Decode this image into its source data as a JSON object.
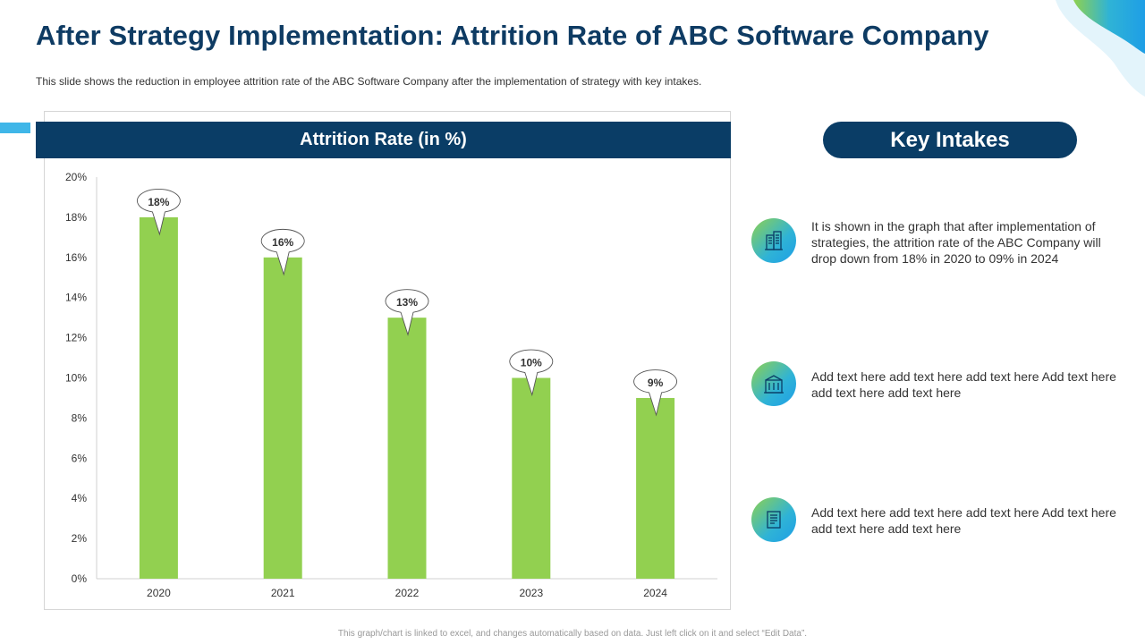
{
  "title": "After Strategy Implementation: Attrition Rate of ABC Software Company",
  "subtitle": "This slide shows the reduction in employee attrition rate of the ABC Software Company after the implementation of strategy with key intakes.",
  "chart_header": "Attrition Rate (in %)",
  "key_intakes": {
    "heading": "Key Intakes",
    "items": [
      {
        "icon": "office-building-icon",
        "text": "It is shown in the graph that after implementation of strategies, the attrition rate of the ABC Company will drop down from 18% in 2020 to 09% in 2024"
      },
      {
        "icon": "building-icon",
        "text": "Add text here add text here add text here Add text here add text here add text here"
      },
      {
        "icon": "document-icon",
        "text": "Add text here add text here add text here Add text here add text here add text here"
      }
    ]
  },
  "footer": "This graph/chart is linked to excel, and changes automatically based on data. Just left click on it and select “Edit Data”.",
  "colors": {
    "bar": "#92d050",
    "header": "#0a3d66",
    "accent": "#3fb6e8"
  },
  "chart_data": {
    "type": "bar",
    "title": "Attrition Rate (in %)",
    "categories": [
      "2020",
      "2021",
      "2022",
      "2023",
      "2024"
    ],
    "values": [
      18,
      16,
      13,
      10,
      9
    ],
    "data_labels": [
      "18%",
      "16%",
      "13%",
      "10%",
      "9%"
    ],
    "ylim": [
      0,
      20
    ],
    "yticks": [
      0,
      2,
      4,
      6,
      8,
      10,
      12,
      14,
      16,
      18,
      20
    ],
    "ytick_labels": [
      "0%",
      "2%",
      "4%",
      "6%",
      "8%",
      "10%",
      "12%",
      "14%",
      "16%",
      "18%",
      "20%"
    ],
    "xlabel": "",
    "ylabel": "",
    "grid": false,
    "legend": "none"
  }
}
